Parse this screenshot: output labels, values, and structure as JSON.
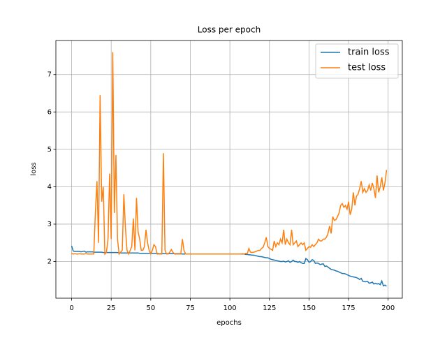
{
  "chart_data": {
    "type": "line",
    "title": "Loss per epoch",
    "xlabel": "epochs",
    "ylabel": "loss",
    "x": [
      0,
      1,
      2,
      3,
      4,
      5,
      6,
      7,
      8,
      9,
      10,
      11,
      12,
      13,
      14,
      15,
      16,
      17,
      18,
      19,
      20,
      21,
      22,
      23,
      24,
      25,
      26,
      27,
      28,
      29,
      30,
      31,
      32,
      33,
      34,
      35,
      36,
      37,
      38,
      39,
      40,
      41,
      42,
      43,
      44,
      45,
      46,
      47,
      48,
      49,
      50,
      51,
      52,
      53,
      54,
      55,
      56,
      57,
      58,
      59,
      60,
      61,
      62,
      63,
      64,
      65,
      66,
      67,
      68,
      69,
      70,
      71,
      72,
      73,
      74,
      75,
      76,
      77,
      78,
      79,
      80,
      81,
      82,
      83,
      84,
      85,
      86,
      87,
      88,
      89,
      90,
      91,
      92,
      93,
      94,
      95,
      96,
      97,
      98,
      99,
      100,
      101,
      102,
      103,
      104,
      105,
      106,
      107,
      108,
      109,
      110,
      111,
      112,
      113,
      114,
      115,
      116,
      117,
      118,
      119,
      120,
      121,
      122,
      123,
      124,
      125,
      126,
      127,
      128,
      129,
      130,
      131,
      132,
      133,
      134,
      135,
      136,
      137,
      138,
      139,
      140,
      141,
      142,
      143,
      144,
      145,
      146,
      147,
      148,
      149,
      150,
      151,
      152,
      153,
      154,
      155,
      156,
      157,
      158,
      159,
      160,
      161,
      162,
      163,
      164,
      165,
      166,
      167,
      168,
      169,
      170,
      171,
      172,
      173,
      174,
      175,
      176,
      177,
      178,
      179,
      180,
      181,
      182,
      183,
      184,
      185,
      186,
      187,
      188,
      189,
      190,
      191,
      192,
      193,
      194,
      195,
      196,
      197,
      198,
      199
    ],
    "series": [
      {
        "name": "train loss",
        "color": "#1f77b4",
        "values": [
          2.42,
          2.28,
          2.27,
          2.27,
          2.27,
          2.27,
          2.26,
          2.27,
          2.28,
          2.25,
          2.26,
          2.26,
          2.26,
          2.26,
          2.25,
          2.25,
          2.25,
          2.25,
          2.25,
          2.25,
          2.24,
          2.24,
          2.24,
          2.24,
          2.24,
          2.24,
          2.24,
          2.24,
          2.24,
          2.24,
          2.23,
          2.23,
          2.23,
          2.23,
          2.23,
          2.23,
          2.23,
          2.23,
          2.23,
          2.23,
          2.23,
          2.23,
          2.23,
          2.22,
          2.22,
          2.22,
          2.22,
          2.22,
          2.22,
          2.22,
          2.22,
          2.22,
          2.22,
          2.22,
          2.22,
          2.21,
          2.21,
          2.21,
          2.21,
          2.21,
          2.21,
          2.21,
          2.21,
          2.21,
          2.21,
          2.21,
          2.21,
          2.21,
          2.21,
          2.21,
          2.2,
          2.2,
          2.2,
          2.2,
          2.2,
          2.2,
          2.2,
          2.2,
          2.2,
          2.2,
          2.2,
          2.2,
          2.2,
          2.2,
          2.2,
          2.2,
          2.2,
          2.2,
          2.2,
          2.2,
          2.2,
          2.2,
          2.2,
          2.2,
          2.2,
          2.2,
          2.2,
          2.2,
          2.2,
          2.2,
          2.2,
          2.2,
          2.2,
          2.2,
          2.2,
          2.2,
          2.2,
          2.2,
          2.2,
          2.2,
          2.19,
          2.19,
          2.18,
          2.18,
          2.17,
          2.17,
          2.16,
          2.15,
          2.14,
          2.13,
          2.13,
          2.12,
          2.11,
          2.1,
          2.1,
          2.08,
          2.06,
          2.05,
          2.04,
          2.03,
          2.02,
          2.01,
          2.0,
          2.0,
          2.01,
          1.99,
          2.0,
          2.02,
          1.98,
          2.0,
          2.04,
          2.0,
          2.0,
          1.98,
          2.0,
          1.97,
          1.95,
          1.95,
          2.08,
          2.05,
          1.98,
          2.0,
          2.05,
          2.03,
          1.95,
          1.96,
          1.95,
          1.92,
          1.93,
          1.94,
          1.87,
          1.88,
          1.85,
          1.82,
          1.79,
          1.78,
          1.77,
          1.75,
          1.74,
          1.72,
          1.7,
          1.68,
          1.68,
          1.67,
          1.65,
          1.63,
          1.61,
          1.6,
          1.59,
          1.58,
          1.57,
          1.55,
          1.52,
          1.55,
          1.47,
          1.46,
          1.46,
          1.47,
          1.42,
          1.43,
          1.45,
          1.4,
          1.42,
          1.4,
          1.41,
          1.38,
          1.48,
          1.35,
          1.37,
          1.34
        ]
      },
      {
        "name": "test loss",
        "color": "#ff7f0e",
        "values": [
          2.22,
          2.2,
          2.21,
          2.2,
          2.2,
          2.21,
          2.2,
          2.2,
          2.2,
          2.21,
          2.2,
          2.2,
          2.2,
          2.2,
          2.2,
          3.3,
          4.15,
          2.5,
          6.45,
          3.6,
          4.0,
          2.2,
          2.25,
          2.6,
          4.35,
          2.6,
          7.6,
          3.3,
          4.85,
          2.6,
          2.2,
          2.25,
          2.3,
          3.8,
          2.9,
          2.3,
          2.2,
          2.3,
          2.4,
          3.15,
          2.3,
          3.7,
          2.8,
          2.6,
          2.3,
          2.3,
          2.4,
          2.85,
          2.5,
          2.3,
          2.2,
          2.3,
          2.45,
          2.4,
          2.2,
          2.2,
          2.2,
          2.2,
          4.9,
          2.3,
          2.2,
          2.2,
          2.25,
          2.32,
          2.25,
          2.2,
          2.2,
          2.2,
          2.2,
          2.2,
          2.6,
          2.3,
          2.2,
          2.2,
          2.2,
          2.2,
          2.2,
          2.2,
          2.2,
          2.2,
          2.2,
          2.2,
          2.2,
          2.2,
          2.2,
          2.2,
          2.2,
          2.2,
          2.2,
          2.2,
          2.2,
          2.2,
          2.2,
          2.2,
          2.2,
          2.2,
          2.2,
          2.2,
          2.2,
          2.2,
          2.2,
          2.2,
          2.2,
          2.2,
          2.2,
          2.2,
          2.2,
          2.2,
          2.21,
          2.2,
          2.22,
          2.21,
          2.35,
          2.25,
          2.24,
          2.25,
          2.26,
          2.28,
          2.3,
          2.3,
          2.35,
          2.38,
          2.5,
          2.65,
          2.4,
          2.35,
          2.33,
          2.3,
          2.55,
          2.4,
          2.5,
          2.45,
          2.6,
          2.5,
          2.85,
          2.45,
          2.6,
          2.5,
          2.45,
          2.85,
          2.45,
          2.5,
          2.55,
          2.4,
          2.45,
          2.5,
          2.45,
          2.5,
          2.3,
          2.35,
          2.4,
          2.38,
          2.45,
          2.4,
          2.45,
          2.5,
          2.6,
          2.55,
          2.55,
          2.6,
          2.6,
          2.65,
          2.75,
          2.95,
          2.75,
          3.2,
          3.1,
          3.12,
          3.2,
          3.3,
          3.5,
          3.55,
          3.45,
          3.5,
          3.4,
          3.6,
          3.25,
          3.4,
          3.85,
          3.5,
          3.75,
          3.8,
          3.95,
          4.15,
          3.85,
          3.95,
          3.85,
          3.9,
          4.05,
          3.9,
          4.1,
          3.95,
          3.7,
          4.3,
          3.85,
          4.0,
          4.25,
          3.9,
          4.1,
          4.45
        ]
      }
    ],
    "xlim": [
      -9.95,
      208.95
    ],
    "ylim": [
      1.02,
      7.91
    ],
    "xticks": [
      0,
      25,
      50,
      75,
      100,
      125,
      150,
      175,
      200
    ],
    "yticks": [
      2,
      3,
      4,
      5,
      6,
      7
    ],
    "grid": true,
    "legend": "upper right"
  }
}
